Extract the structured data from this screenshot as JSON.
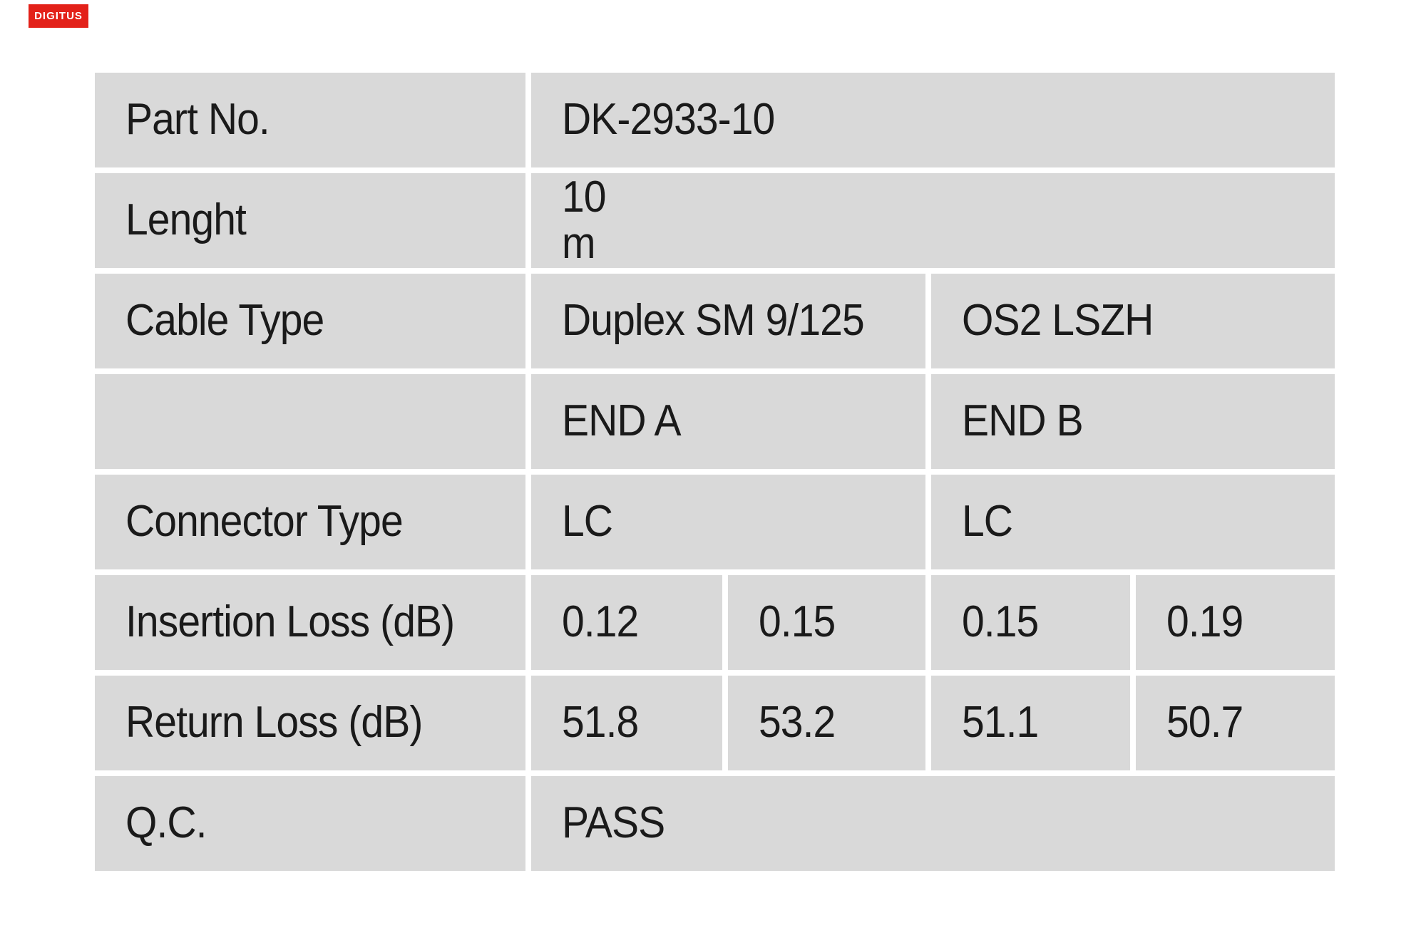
{
  "logo": {
    "text": "DIGITUS",
    "bg_color": "#e32119",
    "text_color": "#ffffff"
  },
  "table": {
    "colors": {
      "cell_bg": "#d9d9d9",
      "text": "#1a1a1a",
      "page_bg": "#ffffff"
    },
    "columns": {
      "end_a_header": "END A",
      "end_b_header": "END B"
    },
    "rows": {
      "part_no": {
        "label": "Part No.",
        "value": "DK-2933-10"
      },
      "length": {
        "label": "Lenght",
        "value": "10\n m"
      },
      "cable_type": {
        "label": "Cable Type",
        "end_a": "Duplex SM 9/125",
        "end_b": "OS2 LSZH"
      },
      "ends_header": {
        "label": "",
        "end_a": "END A",
        "end_b": "END B"
      },
      "connector_type": {
        "label": "Connector Type",
        "end_a": "LC",
        "end_b": "LC"
      },
      "insertion_loss": {
        "label": "Insertion Loss (dB)",
        "end_a_1": "0.12",
        "end_a_2": "0.15",
        "end_b_1": "0.15",
        "end_b_2": "0.19"
      },
      "return_loss": {
        "label": "Return Loss (dB)",
        "end_a_1": "51.8",
        "end_a_2": "53.2",
        "end_b_1": "51.1",
        "end_b_2": "50.7"
      },
      "qc": {
        "label": "Q.C.",
        "value": "PASS"
      }
    }
  }
}
